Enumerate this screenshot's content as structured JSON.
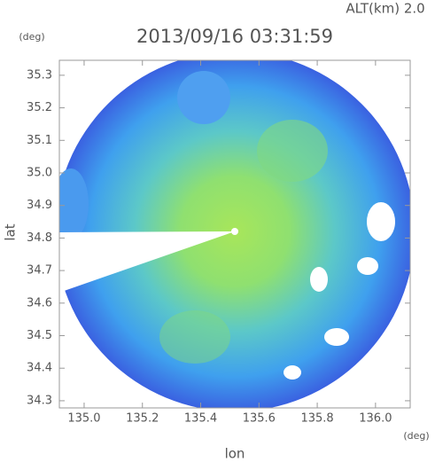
{
  "chart_data": {
    "type": "radar-map",
    "title": "2013/09/16 03:31:59",
    "altitude_label": "ALT(km) 2.0",
    "x_label": "lon",
    "y_label": "lat",
    "x_unit": "(deg)",
    "y_unit": "(deg)",
    "xlim": [
      134.915,
      136.119
    ],
    "ylim": [
      34.278,
      35.346
    ],
    "xticks": [
      {
        "value": 135,
        "label": "135.0"
      },
      135.2,
      135.4,
      135.6,
      135.8,
      {
        "value": 136,
        "label": "136.0"
      }
    ],
    "yticks": [
      34.3,
      34.4,
      34.5,
      34.6,
      34.7,
      34.8,
      34.9,
      {
        "value": 35,
        "label": "35.0"
      },
      35.1,
      35.2,
      35.3
    ],
    "axis_color": "#999999"
  }
}
